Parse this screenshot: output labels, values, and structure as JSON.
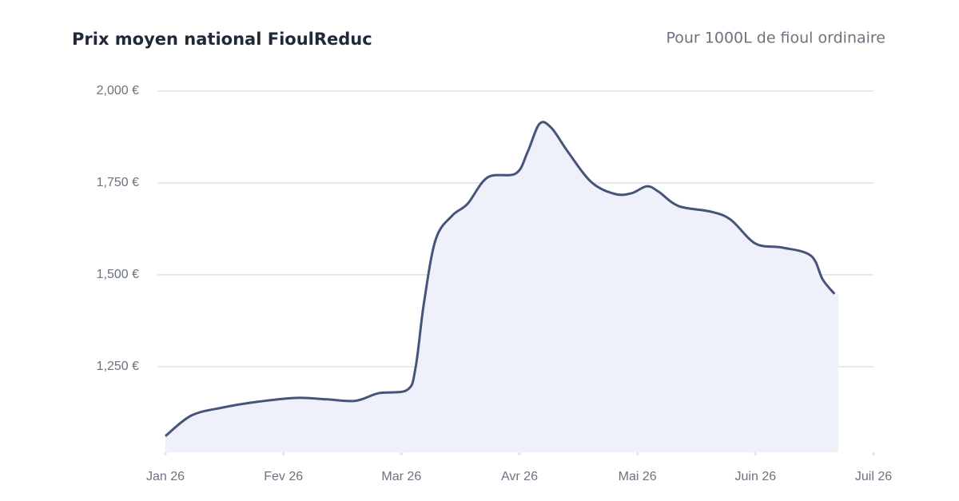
{
  "chart_data": {
    "type": "area",
    "title": "Prix moyen national FioulReduc",
    "subtitle": "Pour 1000L de fioul ordinaire",
    "color": "#45557a",
    "fill": "#eef1fa",
    "x": [
      0,
      0.22,
      0.49,
      0.77,
      1.1,
      1.37,
      1.61,
      1.81,
      2.05,
      2.12,
      2.19,
      2.29,
      2.43,
      2.56,
      2.73,
      2.97,
      3.07,
      3.17,
      3.27,
      3.41,
      3.61,
      3.81,
      3.95,
      4.08,
      4.18,
      4.35,
      4.62,
      4.79,
      5.0,
      5.23,
      5.47,
      5.57,
      5.67
    ],
    "values": [
      1061,
      1117,
      1139,
      1154,
      1165,
      1161,
      1157,
      1178,
      1187,
      1248,
      1422,
      1596,
      1661,
      1693,
      1765,
      1776,
      1835,
      1911,
      1900,
      1835,
      1752,
      1720,
      1722,
      1741,
      1726,
      1687,
      1672,
      1650,
      1585,
      1574,
      1552,
      1487,
      1448
    ],
    "xlim": [
      0,
      6
    ],
    "xticks": [
      {
        "value": 0,
        "label": "Jan 26"
      },
      {
        "value": 1,
        "label": "Fev 26"
      },
      {
        "value": 2,
        "label": "Mar 26"
      },
      {
        "value": 3,
        "label": "Avr 26"
      },
      {
        "value": 4,
        "label": "Mai 26"
      },
      {
        "value": 5,
        "label": "Juin 26"
      },
      {
        "value": 6,
        "label": "Juil 26"
      }
    ],
    "ylim": [
      1017,
      2000
    ],
    "yticks": [
      {
        "value": 1250,
        "label": "1,250 €"
      },
      {
        "value": 1500,
        "label": "1,500 €"
      },
      {
        "value": 1750,
        "label": "1,750 €"
      },
      {
        "value": 2000,
        "label": "2,000 €"
      }
    ],
    "grid": true
  }
}
